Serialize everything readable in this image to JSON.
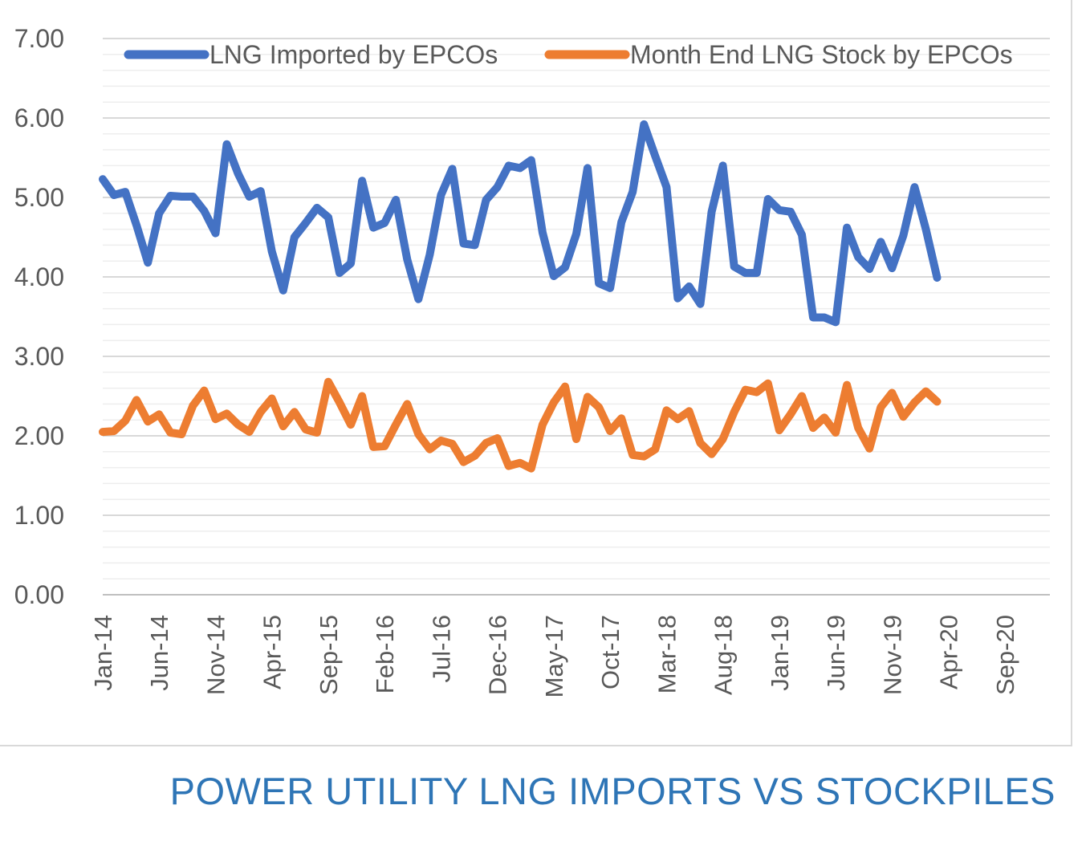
{
  "caption": "POWER UTILITY LNG IMPORTS VS STOCKPILES",
  "chart_data": {
    "type": "line",
    "title": "",
    "xlabel": "",
    "ylabel": "",
    "ylim": [
      0,
      7
    ],
    "y_ticks": [
      "0.00",
      "1.00",
      "2.00",
      "3.00",
      "4.00",
      "5.00",
      "6.00",
      "7.00"
    ],
    "x_ticks": [
      "Jan-14",
      "Jun-14",
      "Nov-14",
      "Apr-15",
      "Sep-15",
      "Feb-16",
      "Jul-16",
      "Dec-16",
      "May-17",
      "Oct-17",
      "Mar-18",
      "Aug-18",
      "Jan-19",
      "Jun-19",
      "Nov-19",
      "Apr-20",
      "Sep-20"
    ],
    "x_range": [
      "Jan-14",
      "Jan-21"
    ],
    "grid": "horizontal major and minor",
    "legend_position": "top",
    "colors": {
      "imports": "#4472c4",
      "stock": "#ed7d31"
    },
    "series": [
      {
        "name": "LNG Imported by EPCOs",
        "start": "Jan-14",
        "values": [
          5.23,
          5.03,
          5.07,
          4.65,
          4.18,
          4.8,
          5.02,
          5.01,
          5.01,
          4.83,
          4.55,
          5.67,
          5.3,
          5.01,
          5.08,
          4.32,
          3.83,
          4.5,
          4.68,
          4.87,
          4.75,
          4.05,
          4.17,
          5.21,
          4.62,
          4.68,
          4.97,
          4.22,
          3.72,
          4.28,
          5.03,
          5.36,
          4.42,
          4.4,
          4.97,
          5.13,
          5.4,
          5.37,
          5.47,
          4.56,
          4.01,
          4.12,
          4.54,
          5.37,
          3.92,
          3.86,
          4.69,
          5.07,
          5.92,
          5.52,
          5.13,
          3.73,
          3.88,
          3.66,
          4.82,
          5.4,
          4.13,
          4.05,
          4.05,
          4.98,
          4.84,
          4.82,
          4.53,
          3.49,
          3.49,
          3.43,
          4.62,
          4.25,
          4.1,
          4.44,
          4.11,
          4.52,
          5.13,
          4.6,
          3.99
        ]
      },
      {
        "name": "Month End LNG Stock by EPCOs",
        "start": "Jan-14",
        "values": [
          2.05,
          2.06,
          2.19,
          2.45,
          2.18,
          2.27,
          2.04,
          2.02,
          2.38,
          2.57,
          2.21,
          2.28,
          2.14,
          2.05,
          2.3,
          2.47,
          2.12,
          2.3,
          2.08,
          2.04,
          2.68,
          2.42,
          2.14,
          2.5,
          1.86,
          1.87,
          2.14,
          2.4,
          2.02,
          1.83,
          1.94,
          1.9,
          1.67,
          1.75,
          1.91,
          1.97,
          1.62,
          1.66,
          1.59,
          2.14,
          2.42,
          2.62,
          1.96,
          2.49,
          2.36,
          2.06,
          2.22,
          1.76,
          1.74,
          1.83,
          2.32,
          2.21,
          2.31,
          1.91,
          1.77,
          1.96,
          2.3,
          2.58,
          2.55,
          2.66,
          2.07,
          2.27,
          2.5,
          2.1,
          2.23,
          2.04,
          2.64,
          2.1,
          1.84,
          2.36,
          2.54,
          2.24,
          2.42,
          2.56,
          2.43
        ]
      }
    ]
  }
}
